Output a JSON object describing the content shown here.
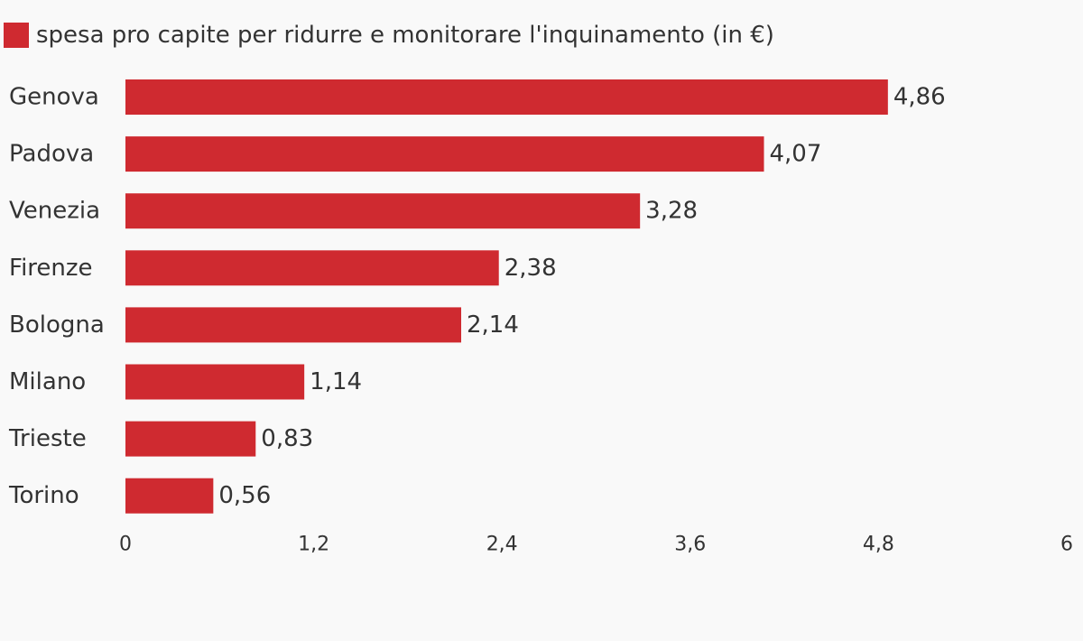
{
  "legend": {
    "label": "spesa pro capite per ridurre e monitorare l'inquinamento (in €)",
    "color": "#cf2a30"
  },
  "chart_data": {
    "type": "bar",
    "orientation": "horizontal",
    "categories": [
      "Genova",
      "Padova",
      "Venezia",
      "Firenze",
      "Bologna",
      "Milano",
      "Trieste",
      "Torino"
    ],
    "series": [
      {
        "name": "spesa pro capite per ridurre e monitorare l'inquinamento (in €)",
        "values": [
          4.86,
          4.07,
          3.28,
          2.38,
          2.14,
          1.14,
          0.83,
          0.56
        ],
        "value_labels": [
          "4,86",
          "4,07",
          "3,28",
          "2,38",
          "2,14",
          "1,14",
          "0,83",
          "0,56"
        ]
      }
    ],
    "xlim": [
      0,
      6
    ],
    "xticks": [
      0,
      1.2,
      2.4,
      3.6,
      4.8,
      6
    ],
    "xtick_labels": [
      "0",
      "1,2",
      "2,4",
      "3,6",
      "4,8",
      "6"
    ],
    "grid": false,
    "legend_position": "top-left"
  }
}
